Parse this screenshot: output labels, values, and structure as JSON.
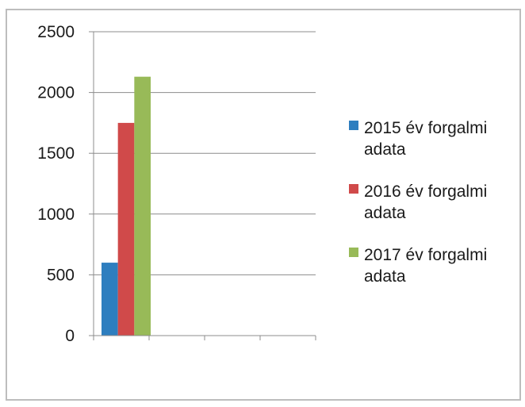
{
  "chart_data": {
    "type": "bar",
    "title": "",
    "xlabel": "",
    "ylabel": "",
    "categories": [
      ""
    ],
    "series": [
      {
        "name": "2015 év forgalmi adata",
        "values": [
          600
        ],
        "color": "#2e7ebf"
      },
      {
        "name": "2016 év forgalmi adata",
        "values": [
          1750
        ],
        "color": "#d04a4a"
      },
      {
        "name": "2017 év forgalmi adata",
        "values": [
          2130
        ],
        "color": "#98ba58"
      }
    ],
    "ylim": [
      0,
      2500
    ],
    "yticks": [
      0,
      500,
      1000,
      1500,
      2000,
      2500
    ],
    "x_axis_slots": 4,
    "grid": "horizontal",
    "legend_position": "right"
  }
}
